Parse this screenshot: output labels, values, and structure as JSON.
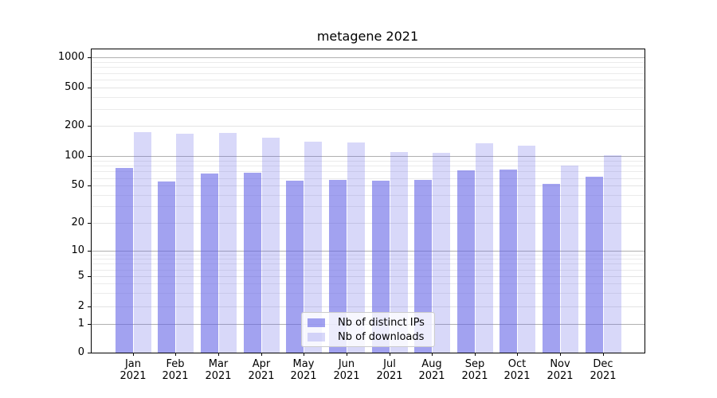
{
  "chart_data": {
    "type": "bar",
    "title": "metagene 2021",
    "categories": [
      "Jan",
      "Feb",
      "Mar",
      "Apr",
      "May",
      "Jun",
      "Jul",
      "Aug",
      "Sep",
      "Oct",
      "Nov",
      "Dec"
    ],
    "year": "2021",
    "series": [
      {
        "name": "Nb of distinct IPs",
        "key": "distinct-ips",
        "color": "rgba(100,100,230,0.60)",
        "color_hex_on_white": "#a2a2f0",
        "values": [
          75,
          55,
          67,
          68,
          56,
          57,
          56,
          57,
          71,
          73,
          52,
          62
        ]
      },
      {
        "name": "Nb of downloads",
        "key": "downloads",
        "color": "rgba(100,100,230,0.25)",
        "color_hex_on_white": "#d8d8f9",
        "values": [
          175,
          168,
          170,
          154,
          140,
          137,
          110,
          107,
          134,
          127,
          80,
          101
        ]
      }
    ],
    "yscale": "symlog",
    "yticks": [
      0,
      1,
      2,
      5,
      10,
      20,
      50,
      100,
      200,
      500,
      1000
    ],
    "ylim": [
      0,
      1200
    ],
    "grid": true,
    "legend": {
      "position": "lower center",
      "entries": [
        "Nb of distinct IPs",
        "Nb of downloads"
      ]
    }
  }
}
